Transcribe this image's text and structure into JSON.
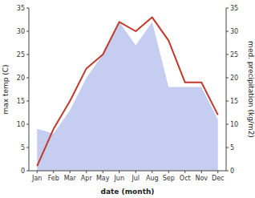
{
  "chart_data": {
    "type": "line",
    "categories": [
      "Jan",
      "Feb",
      "Mar",
      "Apr",
      "May",
      "Jun",
      "Jul",
      "Aug",
      "Sep",
      "Oct",
      "Nov",
      "Dec"
    ],
    "xlabel": "date (month)",
    "ylabel": "max temp (C)",
    "y2label": "med. precipitation (kg/m2)",
    "series": [
      {
        "type": "area",
        "axis": "y2",
        "color": "#c5cef0",
        "values": [
          9,
          8,
          13,
          20,
          25,
          32,
          27,
          32,
          18,
          18,
          18,
          11
        ]
      },
      {
        "type": "line",
        "color": "#c0392b",
        "values": [
          1,
          9,
          15,
          22,
          25,
          32,
          30,
          33,
          28,
          19,
          19,
          12
        ]
      }
    ],
    "ylim": [
      0,
      35
    ],
    "yticks": [
      0,
      5,
      10,
      15,
      20,
      25,
      30,
      35
    ],
    "y2lim": [
      0,
      35
    ],
    "y2ticks": [
      0,
      5,
      10,
      15,
      20,
      25,
      30,
      35
    ],
    "grid": false
  }
}
